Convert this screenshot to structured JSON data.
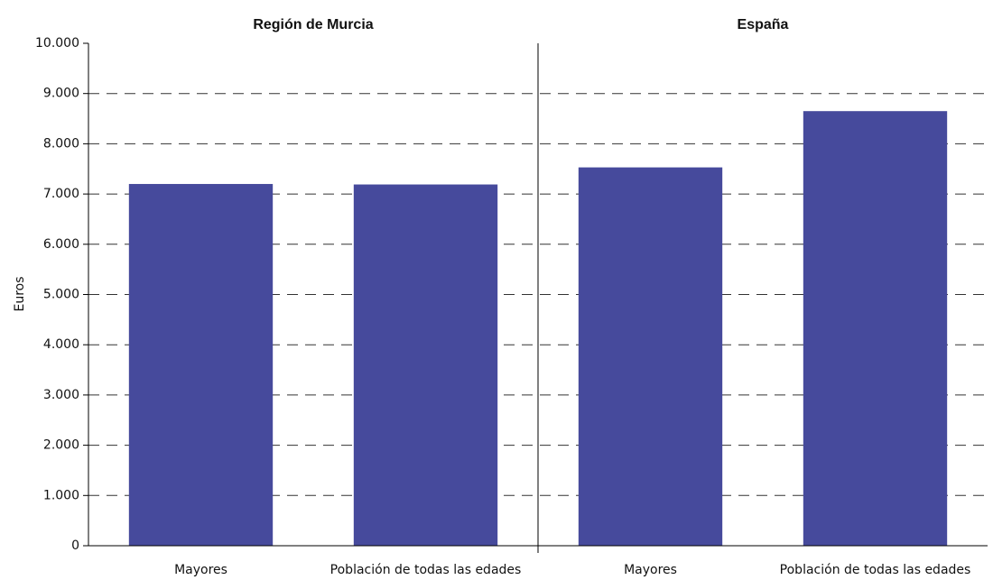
{
  "chart_data": {
    "type": "bar",
    "ylabel": "Euros",
    "color": "#464a9c",
    "grid": true,
    "ylim": [
      0,
      10000
    ],
    "yticks": [
      0,
      {
        "value": 1000,
        "label": "1.000"
      },
      {
        "value": 2000,
        "label": "2.000"
      },
      {
        "value": 3000,
        "label": "3.000"
      },
      {
        "value": 4000,
        "label": "4.000"
      },
      {
        "value": 5000,
        "label": "5.000"
      },
      {
        "value": 6000,
        "label": "6.000"
      },
      {
        "value": 7000,
        "label": "7.000"
      },
      {
        "value": 8000,
        "label": "8.000"
      },
      {
        "value": 9000,
        "label": "9.000"
      },
      {
        "value": 10000,
        "label": "10.000"
      }
    ],
    "panels": [
      {
        "title": "Región de Murcia",
        "categories": [
          "Mayores",
          "Población de todas las edades"
        ],
        "values": [
          7200,
          7190
        ]
      },
      {
        "title": "España",
        "categories": [
          "Mayores",
          "Población de todas las edades"
        ],
        "values": [
          7530,
          8650
        ]
      }
    ]
  }
}
